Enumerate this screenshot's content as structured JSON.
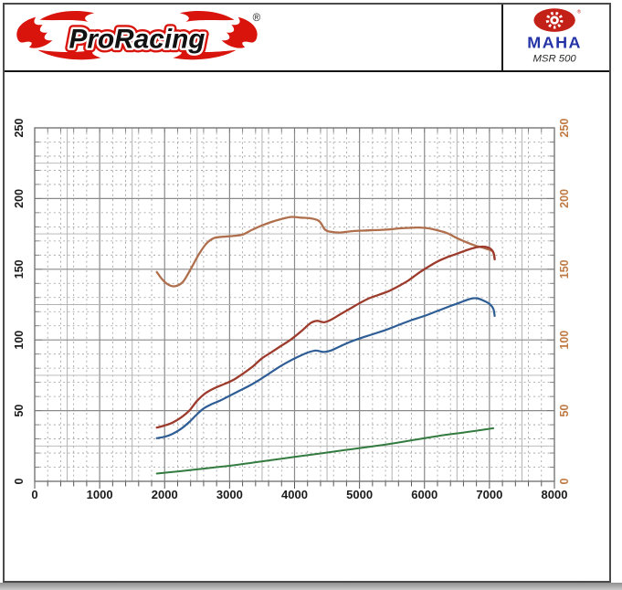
{
  "header": {
    "brand": "ProRacing",
    "registered_mark": "®",
    "device_brand": "MAHA",
    "device_registered_mark": "®",
    "device_model": "MSR 500",
    "brand_red": "#d8140c",
    "device_blue": "#2433a6",
    "device_red": "#c32017"
  },
  "chart_data": {
    "type": "line",
    "title": "",
    "xlabel": "",
    "ylabel": "",
    "x_axis": {
      "min": 0,
      "max": 8000,
      "tick_labels": [
        "0",
        "1000",
        "2000",
        "3000",
        "4000",
        "5000",
        "6000",
        "7000",
        "8000"
      ],
      "minor_dash_step": 200,
      "solid_step": 500,
      "tick_step": 200,
      "label_color": "#1a1a1a"
    },
    "y_axis_left": {
      "min": 0,
      "max": 250,
      "tick_labels": [
        "0",
        "50",
        "100",
        "150",
        "200",
        "250"
      ],
      "minor_dash_step": 10,
      "solid_step": 25,
      "tick_step": 10,
      "label_color": "#1a1a1a"
    },
    "y_axis_right": {
      "min": 0,
      "max": 250,
      "tick_labels": [
        "0",
        "50",
        "100",
        "150",
        "200",
        "250"
      ],
      "label_color": "#bf7a43"
    },
    "grid": {
      "on": true,
      "dash_color": "#9a9a9a",
      "solid_color": "#b2b2b2",
      "major_color": "#8a8a8a",
      "border_color": "#767676"
    },
    "legend": "none",
    "series": [
      {
        "name": "orange-curve",
        "color": "#b06f4c",
        "width": 2.3,
        "points": [
          [
            1880,
            148
          ],
          [
            1960,
            143
          ],
          [
            2060,
            139
          ],
          [
            2160,
            138
          ],
          [
            2280,
            141
          ],
          [
            2400,
            150
          ],
          [
            2520,
            160
          ],
          [
            2640,
            168
          ],
          [
            2760,
            172
          ],
          [
            2900,
            173
          ],
          [
            3050,
            173.5
          ],
          [
            3200,
            174.5
          ],
          [
            3350,
            178
          ],
          [
            3500,
            181
          ],
          [
            3650,
            183.5
          ],
          [
            3800,
            185.5
          ],
          [
            3950,
            187
          ],
          [
            4100,
            186.5
          ],
          [
            4250,
            186
          ],
          [
            4380,
            184
          ],
          [
            4470,
            178
          ],
          [
            4560,
            176.5
          ],
          [
            4700,
            176
          ],
          [
            4900,
            177
          ],
          [
            5150,
            177.5
          ],
          [
            5400,
            178
          ],
          [
            5650,
            179
          ],
          [
            5900,
            179.5
          ],
          [
            6050,
            179
          ],
          [
            6200,
            177.5
          ],
          [
            6350,
            175.5
          ],
          [
            6500,
            172
          ],
          [
            6650,
            169
          ],
          [
            6800,
            166.5
          ],
          [
            6950,
            164.5
          ],
          [
            7050,
            162.5
          ],
          [
            7080,
            158
          ]
        ]
      },
      {
        "name": "red-curve",
        "color": "#9c3a2b",
        "width": 2.3,
        "points": [
          [
            1880,
            38
          ],
          [
            2000,
            39.5
          ],
          [
            2120,
            41.5
          ],
          [
            2250,
            45
          ],
          [
            2380,
            50
          ],
          [
            2500,
            57
          ],
          [
            2620,
            62
          ],
          [
            2750,
            65.5
          ],
          [
            2900,
            68.5
          ],
          [
            3050,
            71.5
          ],
          [
            3200,
            76
          ],
          [
            3350,
            81
          ],
          [
            3500,
            87
          ],
          [
            3650,
            91.5
          ],
          [
            3800,
            96
          ],
          [
            3950,
            100.5
          ],
          [
            4100,
            106
          ],
          [
            4250,
            112
          ],
          [
            4350,
            113.5
          ],
          [
            4450,
            112.5
          ],
          [
            4550,
            114
          ],
          [
            4700,
            118
          ],
          [
            4850,
            122
          ],
          [
            5000,
            126
          ],
          [
            5150,
            129.5
          ],
          [
            5300,
            132
          ],
          [
            5450,
            134.5
          ],
          [
            5600,
            138
          ],
          [
            5750,
            142
          ],
          [
            5900,
            147
          ],
          [
            6050,
            151.5
          ],
          [
            6200,
            155.5
          ],
          [
            6350,
            158.5
          ],
          [
            6500,
            161
          ],
          [
            6650,
            163.5
          ],
          [
            6800,
            165.5
          ],
          [
            6900,
            166
          ],
          [
            7000,
            165
          ],
          [
            7060,
            162
          ],
          [
            7080,
            157
          ]
        ]
      },
      {
        "name": "blue-curve",
        "color": "#2e5d95",
        "width": 2.2,
        "points": [
          [
            1880,
            30.5
          ],
          [
            2000,
            31.5
          ],
          [
            2120,
            33.5
          ],
          [
            2250,
            37
          ],
          [
            2380,
            42
          ],
          [
            2500,
            47.5
          ],
          [
            2600,
            51.5
          ],
          [
            2720,
            54.5
          ],
          [
            2850,
            57
          ],
          [
            3000,
            60.5
          ],
          [
            3150,
            64
          ],
          [
            3300,
            67.5
          ],
          [
            3450,
            71.5
          ],
          [
            3600,
            76
          ],
          [
            3750,
            80.5
          ],
          [
            3900,
            84.5
          ],
          [
            4050,
            88
          ],
          [
            4200,
            91
          ],
          [
            4330,
            92.5
          ],
          [
            4440,
            91.5
          ],
          [
            4560,
            92.5
          ],
          [
            4700,
            95.5
          ],
          [
            4850,
            98.5
          ],
          [
            5000,
            101
          ],
          [
            5200,
            104
          ],
          [
            5400,
            107
          ],
          [
            5600,
            110.5
          ],
          [
            5800,
            114
          ],
          [
            6000,
            117
          ],
          [
            6200,
            120.5
          ],
          [
            6400,
            124
          ],
          [
            6550,
            126.5
          ],
          [
            6700,
            129
          ],
          [
            6800,
            129.5
          ],
          [
            6900,
            128
          ],
          [
            7000,
            125.5
          ],
          [
            7060,
            122
          ],
          [
            7080,
            117
          ]
        ]
      },
      {
        "name": "green-curve",
        "color": "#337b3f",
        "width": 2.0,
        "points": [
          [
            1880,
            5.5
          ],
          [
            2200,
            7
          ],
          [
            2600,
            9
          ],
          [
            3000,
            11
          ],
          [
            3400,
            13.5
          ],
          [
            3800,
            16
          ],
          [
            4200,
            18.5
          ],
          [
            4600,
            21
          ],
          [
            5000,
            23.5
          ],
          [
            5400,
            26
          ],
          [
            5800,
            29
          ],
          [
            6200,
            32
          ],
          [
            6600,
            34.5
          ],
          [
            7060,
            37.5
          ]
        ]
      }
    ]
  }
}
